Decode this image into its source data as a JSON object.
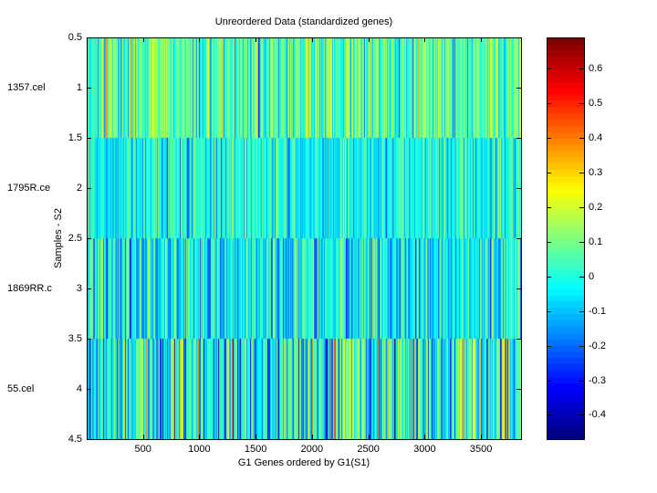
{
  "chart_data": {
    "type": "heatmap",
    "title": "Unreordered Data (standardized genes)",
    "xlabel": "G1 Genes ordered by G1(S1)",
    "ylabel": "Samples - S2",
    "xlim": [
      0.5,
      3855.5
    ],
    "ylim": [
      0.5,
      4.5
    ],
    "n_genes": 3855,
    "x_ticks": [
      500,
      1000,
      1500,
      2000,
      2500,
      3000,
      3500
    ],
    "y_ticks": [
      "0.5",
      "1",
      "1.5",
      "2",
      "2.5",
      "3",
      "3.5",
      "4",
      "4.5"
    ],
    "rows": [
      {
        "label": "1357.cel",
        "y": 1,
        "mean": 0.05,
        "std": 0.12
      },
      {
        "label": "1795R.ce",
        "y": 2,
        "mean": -0.02,
        "std": 0.09
      },
      {
        "label": "1869RR.c",
        "y": 3,
        "mean": -0.04,
        "std": 0.11
      },
      {
        "label": "55.cel",
        "y": 4,
        "mean": 0.0,
        "std": 0.17
      }
    ],
    "colorbar": {
      "colormap": "jet",
      "clim": [
        -0.47,
        0.69
      ],
      "ticks": [
        "-0.4",
        "-0.3",
        "-0.2",
        "-0.1",
        "0",
        "0.1",
        "0.2",
        "0.3",
        "0.4",
        "0.5",
        "0.6"
      ]
    }
  }
}
